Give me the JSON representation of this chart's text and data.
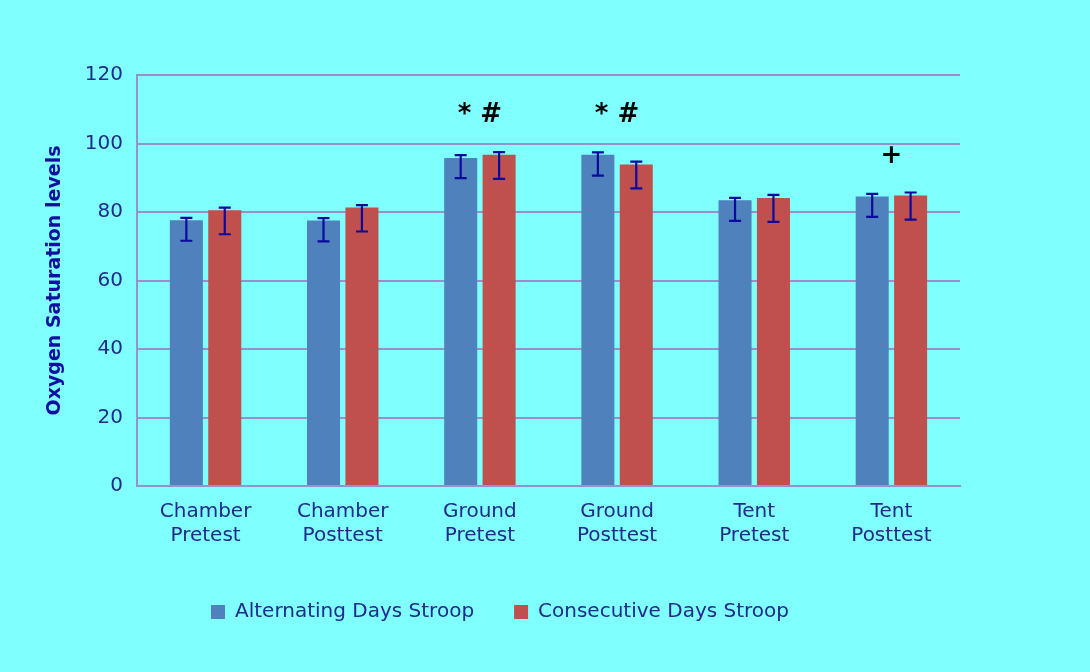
{
  "chart_data": {
    "type": "bar",
    "ylabel": "Oxygen Saturation levels",
    "categories": [
      "Chamber Pretest",
      "Chamber Posttest",
      "Ground Pretest",
      "Ground Posttest",
      "Tent Pretest",
      "Tent Posttest"
    ],
    "series": [
      {
        "name": "Alternating Days Stroop",
        "color": "#4f81bd",
        "values": [
          77.6,
          77.5,
          95.8,
          96.7,
          83.4,
          84.5
        ],
        "errors": [
          [
            71.6,
            78.3
          ],
          [
            71.4,
            78.2
          ],
          [
            89.9,
            96.6
          ],
          [
            90.6,
            97.4
          ],
          [
            77.4,
            84.1
          ],
          [
            78.6,
            85.3
          ]
        ]
      },
      {
        "name": "Consecutive Days Stroop",
        "color": "#c0504d",
        "values": [
          80.5,
          81.3,
          96.7,
          93.9,
          84.1,
          84.8
        ],
        "errors": [
          [
            73.5,
            81.3
          ],
          [
            74.3,
            82.0
          ],
          [
            89.7,
            97.5
          ],
          [
            86.9,
            94.7
          ],
          [
            77.1,
            85.0
          ],
          [
            77.8,
            85.7
          ]
        ]
      }
    ],
    "ylim": [
      0,
      120
    ],
    "yticks": [
      0,
      20,
      40,
      60,
      80,
      100,
      120
    ],
    "grid": "y",
    "legend": "bottom",
    "annotations": [
      {
        "text": "* #",
        "x": "Ground Pretest",
        "y": 96.7
      },
      {
        "text": "* #",
        "x": "Ground Posttest",
        "y": 96.7
      },
      {
        "text": "+",
        "x": "Tent Posttest",
        "y": 84.5
      }
    ]
  }
}
